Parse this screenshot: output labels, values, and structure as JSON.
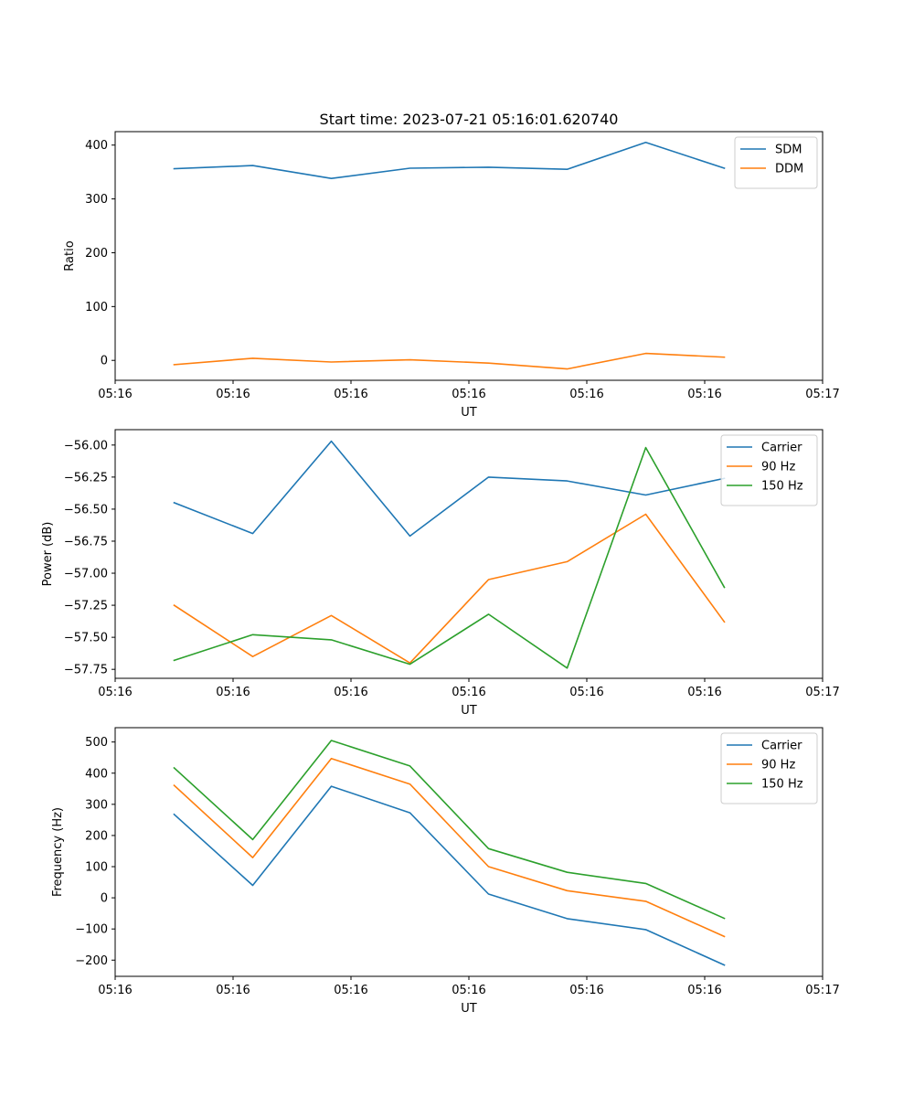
{
  "figure": {
    "title": "Start time: 2023-07-21 05:16:01.620740"
  },
  "chart_data": [
    {
      "type": "line",
      "title": "Start time: 2023-07-21 05:16:01.620740",
      "xlabel": "UT",
      "ylabel": "Ratio",
      "x": [
        1,
        2,
        3,
        4,
        5,
        6,
        7,
        8
      ],
      "xlim": [
        0.25,
        9.25
      ],
      "xticks": [
        0.25,
        1.75,
        3.25,
        4.75,
        6.25,
        7.75,
        9.25
      ],
      "xtick_labels": [
        "05:16",
        "05:16",
        "05:16",
        "05:16",
        "05:16",
        "05:16",
        "05:17"
      ],
      "ylim": [
        -37,
        425
      ],
      "yticks": [
        0,
        100,
        200,
        300,
        400
      ],
      "ytick_labels": [
        "0",
        "100",
        "200",
        "300",
        "400"
      ],
      "legend_position": "top-right",
      "series": [
        {
          "name": "SDM",
          "color": "#1f77b4",
          "values": [
            356,
            362,
            338,
            357,
            359,
            355,
            405,
            357
          ]
        },
        {
          "name": "DDM",
          "color": "#ff7f0e",
          "values": [
            -8,
            4,
            -3,
            1,
            -5,
            -16,
            13,
            6
          ]
        }
      ]
    },
    {
      "type": "line",
      "xlabel": "UT",
      "ylabel": "Power (dB)",
      "x": [
        1,
        2,
        3,
        4,
        5,
        6,
        7,
        8
      ],
      "xlim": [
        0.25,
        9.25
      ],
      "xticks": [
        0.25,
        1.75,
        3.25,
        4.75,
        6.25,
        7.75,
        9.25
      ],
      "xtick_labels": [
        "05:16",
        "05:16",
        "05:16",
        "05:16",
        "05:16",
        "05:16",
        "05:17"
      ],
      "ylim": [
        -57.82,
        -55.88
      ],
      "yticks": [
        -56.0,
        -56.25,
        -56.5,
        -56.75,
        -57.0,
        -57.25,
        -57.5,
        -57.75
      ],
      "ytick_labels": [
        "−56.00",
        "−56.25",
        "−56.50",
        "−56.75",
        "−57.00",
        "−57.25",
        "−57.50",
        "−57.75"
      ],
      "legend_position": "top-right",
      "series": [
        {
          "name": "Carrier",
          "color": "#1f77b4",
          "values": [
            -56.45,
            -56.69,
            -55.97,
            -56.71,
            -56.25,
            -56.28,
            -56.39,
            -56.26
          ]
        },
        {
          "name": "90 Hz",
          "color": "#ff7f0e",
          "values": [
            -57.25,
            -57.65,
            -57.33,
            -57.7,
            -57.05,
            -56.91,
            -56.54,
            -57.38
          ]
        },
        {
          "name": "150 Hz",
          "color": "#2ca02c",
          "values": [
            -57.68,
            -57.48,
            -57.52,
            -57.71,
            -57.32,
            -57.74,
            -56.02,
            -57.11
          ]
        }
      ]
    },
    {
      "type": "line",
      "xlabel": "UT",
      "ylabel": "Frequency (Hz)",
      "x": [
        1,
        2,
        3,
        4,
        5,
        6,
        7,
        8
      ],
      "xlim": [
        0.25,
        9.25
      ],
      "xticks": [
        0.25,
        1.75,
        3.25,
        4.75,
        6.25,
        7.75,
        9.25
      ],
      "xtick_labels": [
        "05:16",
        "05:16",
        "05:16",
        "05:16",
        "05:16",
        "05:16",
        "05:17"
      ],
      "ylim": [
        -252,
        546
      ],
      "yticks": [
        500,
        400,
        300,
        200,
        100,
        0,
        -100,
        -200
      ],
      "ytick_labels": [
        "500",
        "400",
        "300",
        "200",
        "100",
        "0",
        "−100",
        "−200"
      ],
      "legend_position": "top-right",
      "series": [
        {
          "name": "Carrier",
          "color": "#1f77b4",
          "values": [
            268,
            40,
            358,
            273,
            12,
            -67,
            -102,
            -216
          ]
        },
        {
          "name": "90 Hz",
          "color": "#ff7f0e",
          "values": [
            361,
            129,
            447,
            365,
            100,
            23,
            -11,
            -124
          ]
        },
        {
          "name": "150 Hz",
          "color": "#2ca02c",
          "values": [
            417,
            187,
            505,
            423,
            158,
            82,
            46,
            -66
          ]
        }
      ]
    }
  ]
}
